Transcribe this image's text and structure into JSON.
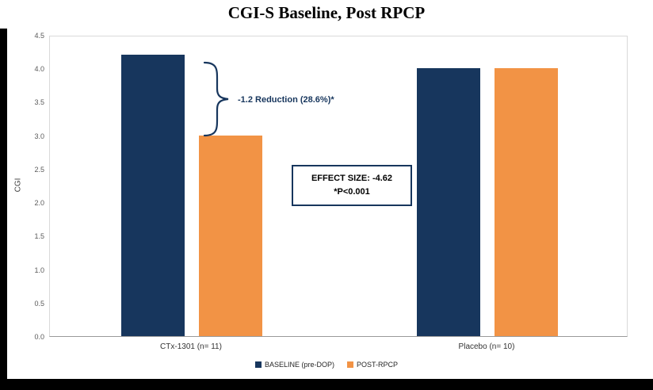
{
  "title": "CGI-S Baseline, Post RPCP",
  "chart_data": {
    "type": "bar",
    "categories": [
      "CTx-1301 (n= 11)",
      "Placebo (n= 10)"
    ],
    "series": [
      {
        "name": "BASELINE (pre-DOP)",
        "color": "#17365D",
        "values": [
          4.2,
          4.0
        ]
      },
      {
        "name": "POST-RPCP",
        "color": "#F29345",
        "values": [
          3.0,
          4.0
        ]
      }
    ],
    "title": "CGI-S Baseline, Post RPCP",
    "xlabel": "",
    "ylabel": "CGI",
    "ylim": [
      0,
      4.5
    ],
    "ytick_step": 0.5,
    "yticks": [
      "4.5",
      "4.0",
      "3.5",
      "3.0",
      "2.5",
      "2.0",
      "1.5",
      "1.0",
      "0.5",
      "0.0"
    ],
    "grid": false,
    "legend_position": "bottom"
  },
  "annotations": {
    "reduction_label": "-1.2 Reduction (28.6%)*",
    "effect_size_line1": "EFFECT SIZE: -4.62",
    "effect_size_line2": "*P<0.001"
  },
  "legend": {
    "items": [
      {
        "label": "BASELINE (pre-DOP)",
        "color": "#17365D"
      },
      {
        "label": "POST-RPCP",
        "color": "#F29345"
      }
    ]
  },
  "colors": {
    "baseline_bar": "#17365D",
    "post_bar": "#F29345",
    "annotation": "#17365D",
    "frame": "#000000"
  }
}
